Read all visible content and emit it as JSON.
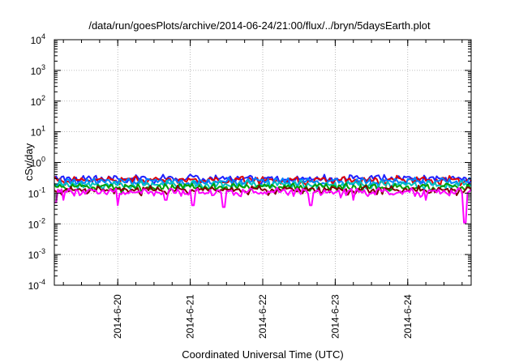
{
  "chart_data": {
    "type": "line",
    "title": "/data/run/goesPlots/archive/2014-06-24/21:00/flux/../bryn/5daysEarth.plot",
    "xlabel": "Coordinated Universal Time (UTC)",
    "ylabel": "cSv/day",
    "y_scale": "log",
    "ylim": [
      0.0001,
      10000
    ],
    "y_ticks": [
      {
        "base": "10",
        "exp": "-4",
        "value": 0.0001
      },
      {
        "base": "10",
        "exp": "-3",
        "value": 0.001
      },
      {
        "base": "10",
        "exp": "-2",
        "value": 0.01
      },
      {
        "base": "10",
        "exp": "-1",
        "value": 0.1
      },
      {
        "base": "10",
        "exp": "0",
        "value": 1
      },
      {
        "base": "10",
        "exp": "1",
        "value": 10
      },
      {
        "base": "10",
        "exp": "2",
        "value": 100
      },
      {
        "base": "10",
        "exp": "3",
        "value": 1000
      },
      {
        "base": "10",
        "exp": "4",
        "value": 10000
      }
    ],
    "x_unit": "days",
    "xlim": [
      "2014-06-19 03:00",
      "2014-06-24 21:00"
    ],
    "x_ticks": [
      {
        "label": "2014-6-20",
        "value": "2014-06-20 00:00"
      },
      {
        "label": "2014-6-21",
        "value": "2014-06-21 00:00"
      },
      {
        "label": "2014-6-22",
        "value": "2014-06-22 00:00"
      },
      {
        "label": "2014-6-23",
        "value": "2014-06-23 00:00"
      },
      {
        "label": "2014-6-24",
        "value": "2014-06-24 00:00"
      }
    ],
    "grid": true,
    "series": [
      {
        "color": "#ff00ff",
        "typical_value": 0.11,
        "dips": [
          {
            "x": "2014-06-19 03:30",
            "value": 0.05
          },
          {
            "x": "2014-06-19 06:00",
            "value": 0.06
          },
          {
            "x": "2014-06-20 00:00",
            "value": 0.04
          },
          {
            "x": "2014-06-20 16:00",
            "value": 0.06
          },
          {
            "x": "2014-06-21 01:00",
            "value": 0.04
          },
          {
            "x": "2014-06-21 11:00",
            "value": 0.035
          },
          {
            "x": "2014-06-22 16:00",
            "value": 0.04
          },
          {
            "x": "2014-06-23 06:00",
            "value": 0.06
          },
          {
            "x": "2014-06-24 06:00",
            "value": 0.06
          },
          {
            "x": "2014-06-24 19:00",
            "value": 0.011
          }
        ]
      },
      {
        "color": "#7f0000",
        "typical_value": 0.13,
        "dips": []
      },
      {
        "color": "#00a000",
        "typical_value": 0.16,
        "dips": []
      },
      {
        "color": "#00c0c0",
        "typical_value": 0.19,
        "dips": []
      },
      {
        "color": "#007fff",
        "typical_value": 0.24,
        "dips": []
      },
      {
        "color": "#e00000",
        "typical_value": 0.27,
        "dips": []
      },
      {
        "color": "#2020ff",
        "typical_value": 0.3,
        "dips": []
      }
    ]
  }
}
